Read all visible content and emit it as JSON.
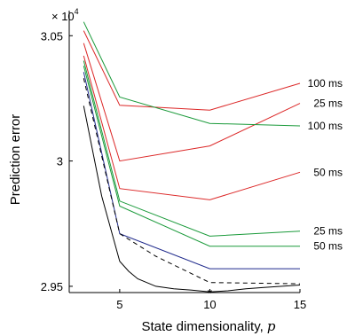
{
  "chart_data": {
    "type": "line",
    "title": "",
    "xlabel": "State dimensionality, ",
    "xlabel_var": "p",
    "ylabel": "Prediction error",
    "y_multiplier": "× 10",
    "y_multiplier_exp": "4",
    "xlim": [
      2.2,
      15
    ],
    "ylim": [
      29475,
      30600
    ],
    "xticks": [
      5,
      10,
      15
    ],
    "xtick_labels": [
      "5",
      "10",
      "15"
    ],
    "yticks": [
      29500,
      30000,
      30500
    ],
    "ytick_labels": [
      "2.95",
      "3",
      "3.05"
    ],
    "grid": false,
    "legend": "none",
    "series": [
      {
        "color": "#dc2828",
        "style": "solid",
        "x": [
          3,
          5,
          10,
          15
        ],
        "y": [
          30520,
          30222,
          30203,
          30310
        ],
        "label": "100 ms"
      },
      {
        "color": "#dc2828",
        "style": "solid",
        "x": [
          3,
          5,
          10,
          15
        ],
        "y": [
          30470,
          30000,
          30060,
          30230
        ],
        "label": "25 ms"
      },
      {
        "color": "#dc2828",
        "style": "solid",
        "x": [
          3,
          5,
          10,
          15
        ],
        "y": [
          30420,
          29890,
          29845,
          29955
        ],
        "label": "50 ms"
      },
      {
        "color": "#1a9a3a",
        "style": "solid",
        "x": [
          3,
          5,
          10,
          15
        ],
        "y": [
          30555,
          30255,
          30150,
          30140
        ],
        "label": "100 ms"
      },
      {
        "color": "#1a9a3a",
        "style": "solid",
        "x": [
          3,
          5,
          10,
          15
        ],
        "y": [
          30400,
          29840,
          29700,
          29720
        ],
        "label": "25 ms"
      },
      {
        "color": "#1a9a3a",
        "style": "solid",
        "x": [
          3,
          5,
          10,
          15
        ],
        "y": [
          30380,
          29820,
          29660,
          29660
        ],
        "label": "50 ms"
      },
      {
        "color": "#1f2a8c",
        "style": "solid",
        "x": [
          3,
          5,
          10,
          15
        ],
        "y": [
          30355,
          29710,
          29570,
          29570
        ],
        "label": ""
      },
      {
        "color": "#000000",
        "style": "dashed",
        "x": [
          3,
          5,
          7,
          10,
          15
        ],
        "y": [
          30330,
          29710,
          29620,
          29515,
          29510
        ],
        "label": ""
      },
      {
        "color": "#000000",
        "style": "solid",
        "x": [
          3,
          4,
          5,
          5.5,
          6,
          7,
          8,
          9,
          10,
          11,
          12,
          13,
          14,
          15
        ],
        "y": [
          30220,
          29860,
          29600,
          29560,
          29530,
          29500,
          29490,
          29485,
          29478,
          29482,
          29490,
          29495,
          29500,
          29505
        ],
        "label": ""
      }
    ],
    "marker": {
      "x": 10,
      "y": 29477,
      "symbol": "*"
    }
  }
}
